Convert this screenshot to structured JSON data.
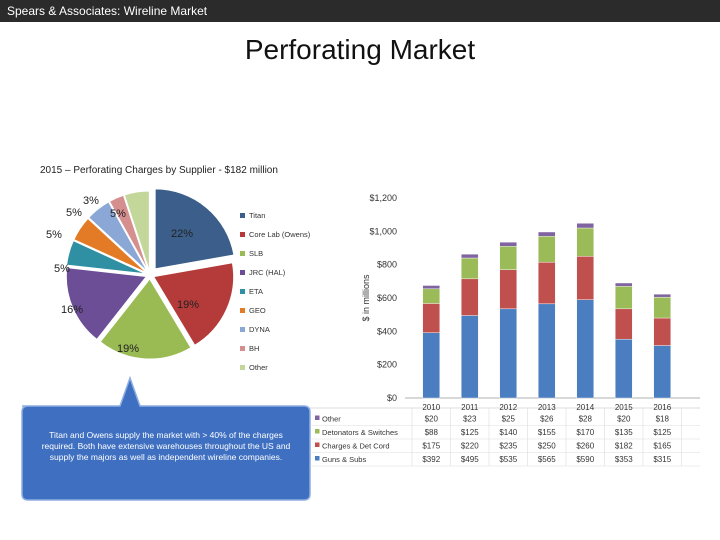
{
  "header": {
    "company": "Spears & Associates:  Wireline Market",
    "title": "Perforating Market"
  },
  "callout": {
    "text": "Titan and Owens supply the market with > 40% of the charges required. Both have extensive warehouses throughout the US and supply the majors as well as independent wireline companies."
  },
  "colors": {
    "topbar": "#2b2b2b",
    "callout": "#3e6fc0"
  },
  "chart_data": [
    {
      "type": "pie",
      "title": "2015 – Perforating Charges by Supplier - $182 million",
      "legend_position": "right",
      "slices": [
        {
          "label": "Titan",
          "value": 22,
          "display": "22%",
          "color": "#3b5f8a"
        },
        {
          "label": "Core Lab (Owens)",
          "value": 19,
          "display": "19%",
          "color": "#b43b3a"
        },
        {
          "label": "SLB",
          "value": 19,
          "display": "19%",
          "color": "#9aba54"
        },
        {
          "label": "JRC (HAL)",
          "value": 16,
          "display": "16%",
          "color": "#6b4e96"
        },
        {
          "label": "ETA",
          "value": 5,
          "display": "5%",
          "color": "#2f8fa3"
        },
        {
          "label": "GEO",
          "value": 5,
          "display": "5%",
          "color": "#e37b26"
        },
        {
          "label": "DYNA",
          "value": 5,
          "display": "5%",
          "color": "#8aa7d6"
        },
        {
          "label": "BH",
          "value": 3,
          "display": "3%",
          "color": "#d48f8e"
        },
        {
          "label": "Other",
          "value": 5,
          "display": "5%",
          "color": "#c3d79a"
        }
      ]
    },
    {
      "type": "bar",
      "stacked": true,
      "ylabel": "$ in millions",
      "ylim": [
        0,
        1200
      ],
      "yticks": [
        0,
        200,
        400,
        600,
        800,
        1000,
        1200
      ],
      "ytick_labels": [
        "$0",
        "$200",
        "$400",
        "$600",
        "$800",
        "$1,000",
        "$1,200"
      ],
      "categories": [
        "2010",
        "2011",
        "2012",
        "2013",
        "2014",
        "2015",
        "2016"
      ],
      "grid": false,
      "legend_position": "bottom-left table",
      "series": [
        {
          "name": "Guns & Subs",
          "color": "#4a7ec0",
          "values": [
            392,
            495,
            535,
            565,
            590,
            353,
            315
          ],
          "labels": [
            "$392",
            "$495",
            "$535",
            "$565",
            "$590",
            "$353",
            "$315"
          ]
        },
        {
          "name": "Charges & Det Cord",
          "color": "#c0504d",
          "values": [
            175,
            220,
            235,
            250,
            260,
            182,
            165
          ],
          "labels": [
            "$175",
            "$220",
            "$235",
            "$250",
            "$260",
            "$182",
            "$165"
          ]
        },
        {
          "name": "Detonators & Switches",
          "color": "#9bbb59",
          "values": [
            88,
            125,
            140,
            155,
            170,
            135,
            125
          ],
          "labels": [
            "$88",
            "$125",
            "$140",
            "$155",
            "$170",
            "$135",
            "$125"
          ]
        },
        {
          "name": "Other",
          "color": "#8064a2",
          "values": [
            20,
            23,
            25,
            26,
            28,
            20,
            18
          ],
          "labels": [
            "$20",
            "$23",
            "$25",
            "$26",
            "$28",
            "$20",
            "$18"
          ]
        }
      ]
    }
  ]
}
